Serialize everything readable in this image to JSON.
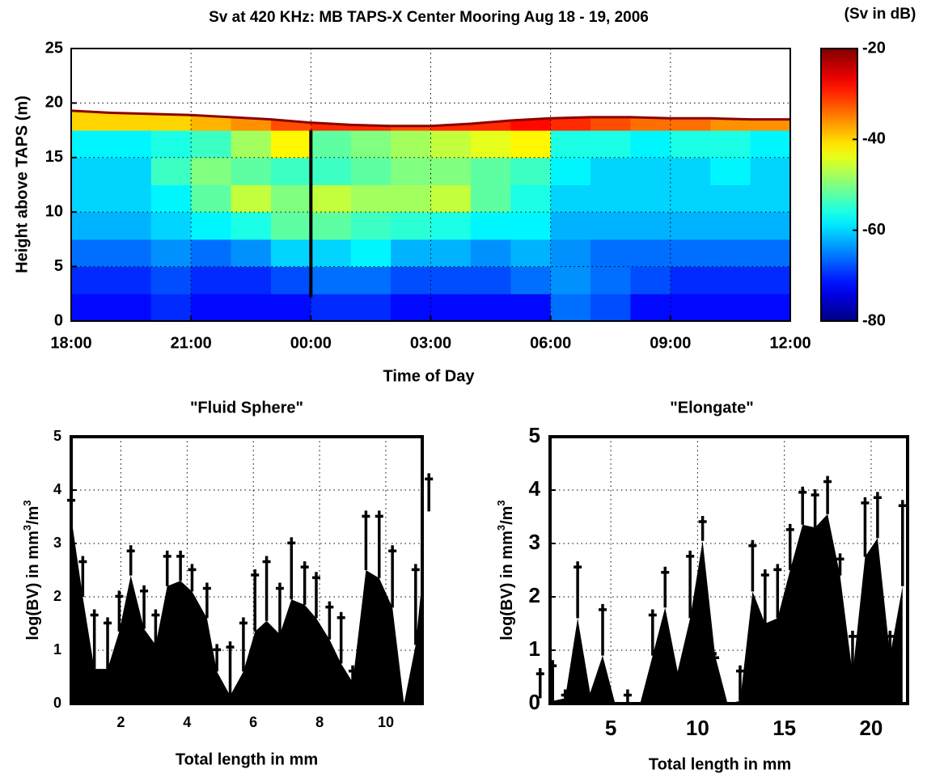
{
  "chart_data": [
    {
      "type": "heatmap",
      "title": "Sv at 420 KHz: MB TAPS-X Center Mooring Aug 18 - 19, 2006",
      "xlabel": "Time of Day",
      "ylabel": "Height above TAPS (m)",
      "x": [
        0.5,
        1.5,
        2.5,
        3.5,
        4.5,
        5.5,
        6.5,
        7.5,
        8.5,
        9.5,
        10.5,
        11.5,
        12.5,
        13.5,
        14.5,
        15.5,
        16.5,
        17.5
      ],
      "y": [
        1.25,
        3.75,
        6.25,
        8.75,
        11.25,
        13.75,
        16.25,
        18.75
      ],
      "values": [
        [
          -72,
          -72,
          -70,
          -72,
          -72,
          -72,
          -70,
          -70,
          -72,
          -72,
          -72,
          -72,
          -66,
          -68,
          -72,
          -72,
          -72,
          -72
        ],
        [
          -70,
          -70,
          -68,
          -70,
          -70,
          -68,
          -66,
          -66,
          -68,
          -68,
          -68,
          -66,
          -64,
          -66,
          -68,
          -70,
          -70,
          -70
        ],
        [
          -66,
          -66,
          -64,
          -66,
          -64,
          -60,
          -60,
          -58,
          -62,
          -62,
          -64,
          -62,
          -64,
          -66,
          -66,
          -66,
          -66,
          -66
        ],
        [
          -62,
          -62,
          -60,
          -58,
          -56,
          -52,
          -52,
          -54,
          -55,
          -56,
          -58,
          -58,
          -62,
          -62,
          -62,
          -62,
          -62,
          -62
        ],
        [
          -60,
          -60,
          -58,
          -52,
          -46,
          -50,
          -46,
          -48,
          -48,
          -46,
          -52,
          -56,
          -60,
          -60,
          -60,
          -60,
          -60,
          -60
        ],
        [
          -60,
          -60,
          -54,
          -50,
          -52,
          -54,
          -54,
          -52,
          -50,
          -50,
          -52,
          -54,
          -58,
          -60,
          -60,
          -60,
          -58,
          -60
        ],
        [
          -58,
          -58,
          -56,
          -54,
          -48,
          -42,
          -52,
          -50,
          -48,
          -46,
          -44,
          -42,
          -56,
          -56,
          -58,
          -56,
          -56,
          -58
        ],
        [
          -40,
          -40,
          -40,
          -38,
          -36,
          -32,
          -30,
          -30,
          -32,
          -30,
          -30,
          -28,
          -30,
          -32,
          -34,
          -34,
          -36,
          -36
        ]
      ],
      "surface": {
        "color": "#8b0000",
        "x": [
          0,
          1,
          2,
          3,
          4,
          5,
          6,
          7,
          8,
          9,
          10,
          11,
          12,
          13,
          14,
          15,
          16,
          17,
          18
        ],
        "values": [
          19.3,
          19.1,
          19.0,
          18.9,
          18.7,
          18.5,
          18.2,
          18.0,
          17.9,
          17.9,
          18.1,
          18.4,
          18.6,
          18.7,
          18.7,
          18.6,
          18.6,
          18.5,
          18.5
        ]
      },
      "marker": {
        "x": 6,
        "y": [
          2.2,
          17.5
        ],
        "color": "#000000"
      },
      "xlim": [
        0,
        18
      ],
      "ylim": [
        0,
        25
      ],
      "xticks": [
        {
          "value": 0,
          "label": "18:00"
        },
        {
          "value": 3,
          "label": "21:00"
        },
        {
          "value": 6,
          "label": "00:00"
        },
        {
          "value": 9,
          "label": "03:00"
        },
        {
          "value": 12,
          "label": "06:00"
        },
        {
          "value": 15,
          "label": "09:00"
        },
        {
          "value": 18,
          "label": "12:00"
        }
      ],
      "yticks": [
        0,
        5,
        10,
        15,
        20,
        25
      ],
      "grid": true,
      "colorbar": {
        "label": "(Sv in dB)",
        "colormap": "jet",
        "lim": [
          -80,
          -20
        ],
        "ticks": [
          -20,
          -40,
          -60,
          -80
        ]
      }
    },
    {
      "type": "area",
      "title": "\"Fluid Sphere\"",
      "xlabel": "Total length in mm",
      "ylabel": [
        "log(BV) in mm",
        "3",
        "/m",
        "3"
      ],
      "color": "#000000",
      "x": [
        0.5,
        0.85,
        1.2,
        1.6,
        1.95,
        2.3,
        2.7,
        3.05,
        3.4,
        3.8,
        4.15,
        4.6,
        4.9,
        5.3,
        5.7,
        6.05,
        6.4,
        6.8,
        7.15,
        7.55,
        7.9,
        8.3,
        8.65,
        9.0,
        9.4,
        9.8,
        10.2,
        10.55,
        10.9,
        11.3
      ],
      "values": [
        3.5,
        2.0,
        0.65,
        0.65,
        1.35,
        2.4,
        1.4,
        1.1,
        2.2,
        2.3,
        2.1,
        1.6,
        0.6,
        0.15,
        0.6,
        1.35,
        1.55,
        1.3,
        1.95,
        1.85,
        1.6,
        1.2,
        0.75,
        0.4,
        2.5,
        2.35,
        1.8,
        0,
        1.1,
        3.6
      ],
      "errors": [
        0.4,
        0.75,
        1.1,
        0.95,
        0.75,
        0.55,
        0.8,
        0.65,
        0.65,
        0.55,
        0.5,
        0.65,
        0.5,
        1.0,
        1.0,
        1.15,
        1.2,
        0.95,
        1.15,
        0.8,
        0.85,
        0.7,
        0.95,
        0.3,
        1.1,
        1.25,
        1.15,
        null,
        1.5,
        0.7
      ],
      "xlim": [
        0.5,
        11.1
      ],
      "ylim": [
        0,
        5
      ],
      "xticks": [
        2,
        4,
        6,
        8,
        10
      ],
      "yticks": [
        0,
        1,
        2,
        3,
        4,
        5
      ],
      "grid": true
    },
    {
      "type": "area",
      "title": "\"Elongate\"",
      "xlabel": "Total length in mm",
      "ylabel": [
        "log(BV) in mm",
        "3",
        "/m",
        "3"
      ],
      "color": "#000000",
      "x": [
        0.93,
        1.65,
        2.37,
        3.09,
        3.81,
        4.53,
        5.25,
        5.97,
        6.69,
        7.41,
        8.13,
        8.85,
        9.57,
        10.29,
        11.01,
        11.73,
        12.45,
        13.17,
        13.89,
        14.61,
        15.33,
        16.05,
        16.77,
        17.49,
        18.21,
        18.93,
        19.65,
        20.37,
        21.09,
        21.81
      ],
      "values": [
        0.1,
        0.05,
        0.1,
        1.6,
        0.2,
        0.9,
        0,
        0,
        0,
        0.9,
        1.8,
        0.6,
        1.6,
        3.05,
        0.9,
        0,
        0.05,
        2.1,
        1.5,
        1.6,
        2.5,
        3.35,
        3.3,
        3.55,
        2.4,
        0.55,
        2.75,
        3.1,
        0.9,
        2.2
      ],
      "errors": [
        0.55,
        0.75,
        0.15,
        1.05,
        null,
        0.95,
        null,
        0.25,
        null,
        0.85,
        0.75,
        null,
        1.25,
        0.45,
        0.05,
        null,
        0.65,
        0.95,
        1.0,
        1.0,
        0.85,
        0.7,
        0.7,
        0.7,
        0.4,
        0.8,
        1.1,
        0.85,
        0.45,
        1.6
      ],
      "xlim": [
        1.5,
        22.1
      ],
      "ylim": [
        0,
        5
      ],
      "xticks": [
        5,
        10,
        15,
        20
      ],
      "yticks": [
        0,
        1,
        2,
        3,
        4,
        5
      ],
      "grid": true
    }
  ]
}
